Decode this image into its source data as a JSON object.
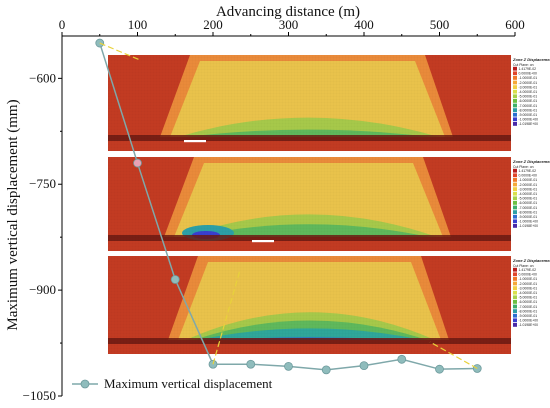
{
  "chart_data": {
    "type": "line",
    "title": "",
    "xlabel": "Advancing distance (m)",
    "ylabel": "Maximum vertical displacement (mm)",
    "xlim": [
      0,
      600
    ],
    "ylim": [
      -1050,
      -540
    ],
    "xticks": [
      "0",
      "100",
      "200",
      "300",
      "400",
      "500",
      "600"
    ],
    "yticks": [
      "−600",
      "−750",
      "−900",
      "−1050"
    ],
    "xtick_values": [
      0,
      100,
      200,
      300,
      400,
      500,
      600
    ],
    "ytick_values": [
      -600,
      -750,
      -900,
      -1050
    ],
    "x_axis_position": "top",
    "grid": false,
    "legend_position": "bottom-left",
    "series": [
      {
        "name": "Maximum vertical displacement",
        "color": "#7fa8aa",
        "marker_color": "#8fbcbc",
        "x": [
          50,
          100,
          150,
          200,
          250,
          300,
          350,
          400,
          450,
          500,
          550
        ],
        "y": [
          -550,
          -720,
          -885,
          -1005,
          -1005,
          -1008,
          -1013,
          -1007,
          -998,
          -1012,
          -1011
        ]
      }
    ],
    "highlight_point": {
      "x": 100,
      "y": -720,
      "color": "#e8a2b6"
    },
    "inset_legend": {
      "title": "Zone Z Displacement",
      "subtitle": "Cut Plane: on",
      "labels": [
        "1.4179E-02",
        "0.0000E+00",
        "-1.0000E-01",
        "-2.0000E-01",
        "-3.0000E-01",
        "-4.0000E-01",
        "-5.0000E-01",
        "-6.0000E-01",
        "-7.0000E-01",
        "-8.0000E-01",
        "-9.0000E-01",
        "-1.0000E+00",
        "-1.0198E+00"
      ]
    }
  }
}
